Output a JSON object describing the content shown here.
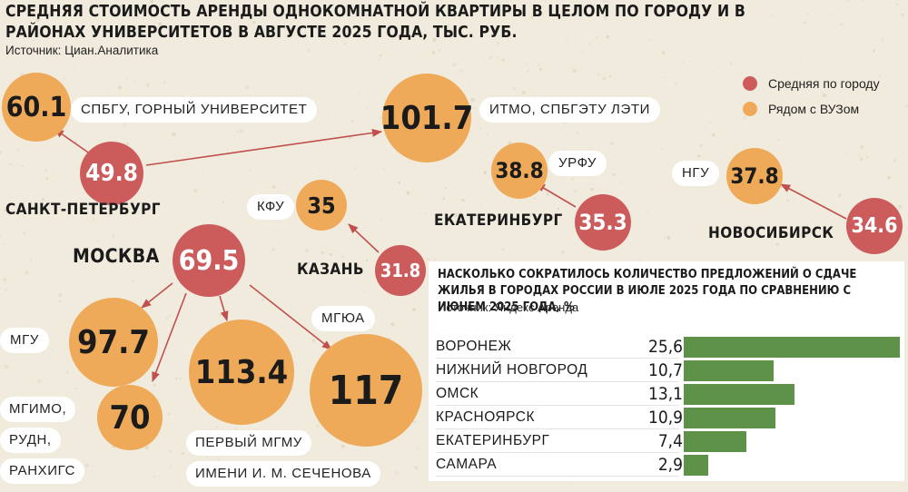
{
  "title": "СРЕДНЯЯ СТОИМОСТЬ АРЕНДЫ ОДНОКОМНАТНОЙ КВАРТИРЫ В ЦЕЛОМ ПО ГОРОДУ И В РАЙОНАХ УНИВЕРСИТЕТОВ В АВГУСТЕ 2025 ГОДА, ТЫС. РУБ.",
  "source": "Источник: Циан.Аналитика",
  "colors": {
    "city_average": "#cc5c5c",
    "near_university": "#eeaa59",
    "bar": "#5f9249",
    "background": "#f1ebde"
  },
  "legend": {
    "city_average": "Средняя по городу",
    "near_university": "Рядом с ВУЗом"
  },
  "cities": {
    "spb": {
      "name": "САНКТ-ПЕТЕРБУРГ",
      "average": "49.8",
      "unis": [
        {
          "value": "60.1",
          "label": "СПБГУ, ГОРНЫЙ УНИВЕРСИТЕТ"
        },
        {
          "value": "101.7",
          "label": "ИТМО, СПБГЭТУ ЛЭТИ"
        }
      ]
    },
    "ekb": {
      "name": "ЕКАТЕРИНБУРГ",
      "average": "35.3",
      "unis": [
        {
          "value": "38.8",
          "label": "УРФУ"
        }
      ]
    },
    "nsk": {
      "name": "НОВОСИБИРСК",
      "average": "34.6",
      "unis": [
        {
          "value": "37.8",
          "label": "НГУ"
        }
      ]
    },
    "kazan": {
      "name": "КАЗАНЬ",
      "average": "31.8",
      "unis": [
        {
          "value": "35",
          "label": "КФУ"
        }
      ]
    },
    "moscow": {
      "name": "МОСКВА",
      "average": "69.5",
      "unis": [
        {
          "value": "97.7",
          "label": "МГУ"
        },
        {
          "value": "70",
          "label_lines": [
            "МГИМО,",
            "РУДН,",
            "РАНХИГС"
          ]
        },
        {
          "value": "113.4",
          "label_lines": [
            "ПЕРВЫЙ МГМУ",
            "ИМЕНИ И. М. СЕЧЕНОВА"
          ]
        },
        {
          "value": "117",
          "label": "МГЮА"
        }
      ]
    }
  },
  "panel": {
    "title": "НАСКОЛЬКО СОКРАТИЛОСЬ КОЛИЧЕСТВО ПРЕДЛОЖЕНИЙ О СДАЧЕ ЖИЛЬЯ В ГОРОДАХ РОССИИ В ИЮЛЕ 2025 ГОДА ПО СРАВНЕНИЮ С ИЮНЕМ 2025 ГОДА, %",
    "source": "Источник: Яндекс Аренда"
  },
  "chart_data": [
    {
      "type": "scatter",
      "title": "СРЕДНЯЯ СТОИМОСТЬ АРЕНДЫ ОДНОКОМНАТНОЙ КВАРТИРЫ В ЦЕЛОМ ПО ГОРОДУ И В РАЙОНАХ УНИВЕРСИТЕТОВ В АВГУСТЕ 2025 ГОДА, ТЫС. РУБ.",
      "series": [
        {
          "name": "Средняя по городу",
          "categories": [
            "САНКТ-ПЕТЕРБУРГ",
            "МОСКВА",
            "КАЗАНЬ",
            "ЕКАТЕРИНБУРГ",
            "НОВОСИБИРСК"
          ],
          "values": [
            49.8,
            69.5,
            31.8,
            35.3,
            34.6
          ]
        },
        {
          "name": "Рядом с ВУЗом",
          "categories": [
            "СПБГУ, ГОРНЫЙ УНИВЕРСИТЕТ",
            "ИТМО, СПБГЭТУ ЛЭТИ",
            "УРФУ",
            "НГУ",
            "КФУ",
            "МГУ",
            "МГИМО, РУДН, РАНХИГС",
            "ПЕРВЫЙ МГМУ ИМЕНИ И. М. СЕЧЕНОВА",
            "МГЮА"
          ],
          "values": [
            60.1,
            101.7,
            38.8,
            37.8,
            35,
            97.7,
            70,
            113.4,
            117
          ]
        }
      ]
    },
    {
      "type": "bar",
      "title": "НАСКОЛЬКО СОКРАТИЛОСЬ КОЛИЧЕСТВО ПРЕДЛОЖЕНИЙ О СДАЧЕ ЖИЛЬЯ В ГОРОДАХ РОССИИ В ИЮЛЕ 2025 ГОДА ПО СРАВНЕНИЮ С ИЮНЕМ 2025 ГОДА, %",
      "categories": [
        "ВОРОНЕЖ",
        "НИЖНИЙ НОВГОРОД",
        "ОМСК",
        "КРАСНОЯРСК",
        "ЕКАТЕРИНБУРГ",
        "САМАРА"
      ],
      "values": [
        25.6,
        10.7,
        13.1,
        10.9,
        7.4,
        2.9
      ],
      "value_labels": [
        "25,6",
        "10,7",
        "13,1",
        "10,9",
        "7,4",
        "2,9"
      ],
      "xlim": [
        0,
        25.6
      ]
    }
  ]
}
